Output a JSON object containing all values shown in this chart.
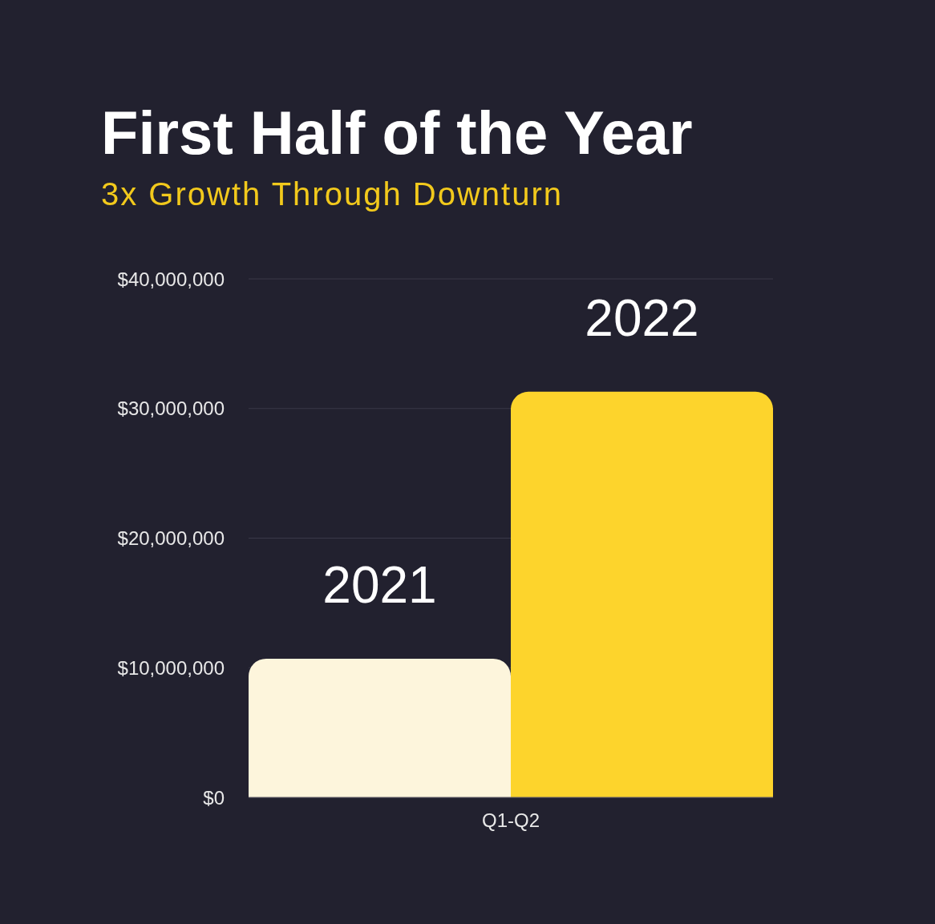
{
  "chart_data": {
    "type": "bar",
    "title": "First Half of the Year",
    "subtitle": "3x Growth Through Downturn",
    "categories": [
      "Q1-Q2"
    ],
    "series": [
      {
        "name": "2021",
        "color": "#fdf5dc",
        "values": [
          10700000
        ]
      },
      {
        "name": "2022",
        "color": "#fdd42c",
        "values": [
          31300000
        ]
      }
    ],
    "ylim": [
      0,
      40000000
    ],
    "yticks": [
      {
        "value": 0,
        "label": "$0"
      },
      {
        "value": 10000000,
        "label": "$10,000,000"
      },
      {
        "value": 20000000,
        "label": "$20,000,000"
      },
      {
        "value": 30000000,
        "label": "$30,000,000"
      },
      {
        "value": 40000000,
        "label": "$40,000,000"
      }
    ],
    "grid": "y"
  }
}
